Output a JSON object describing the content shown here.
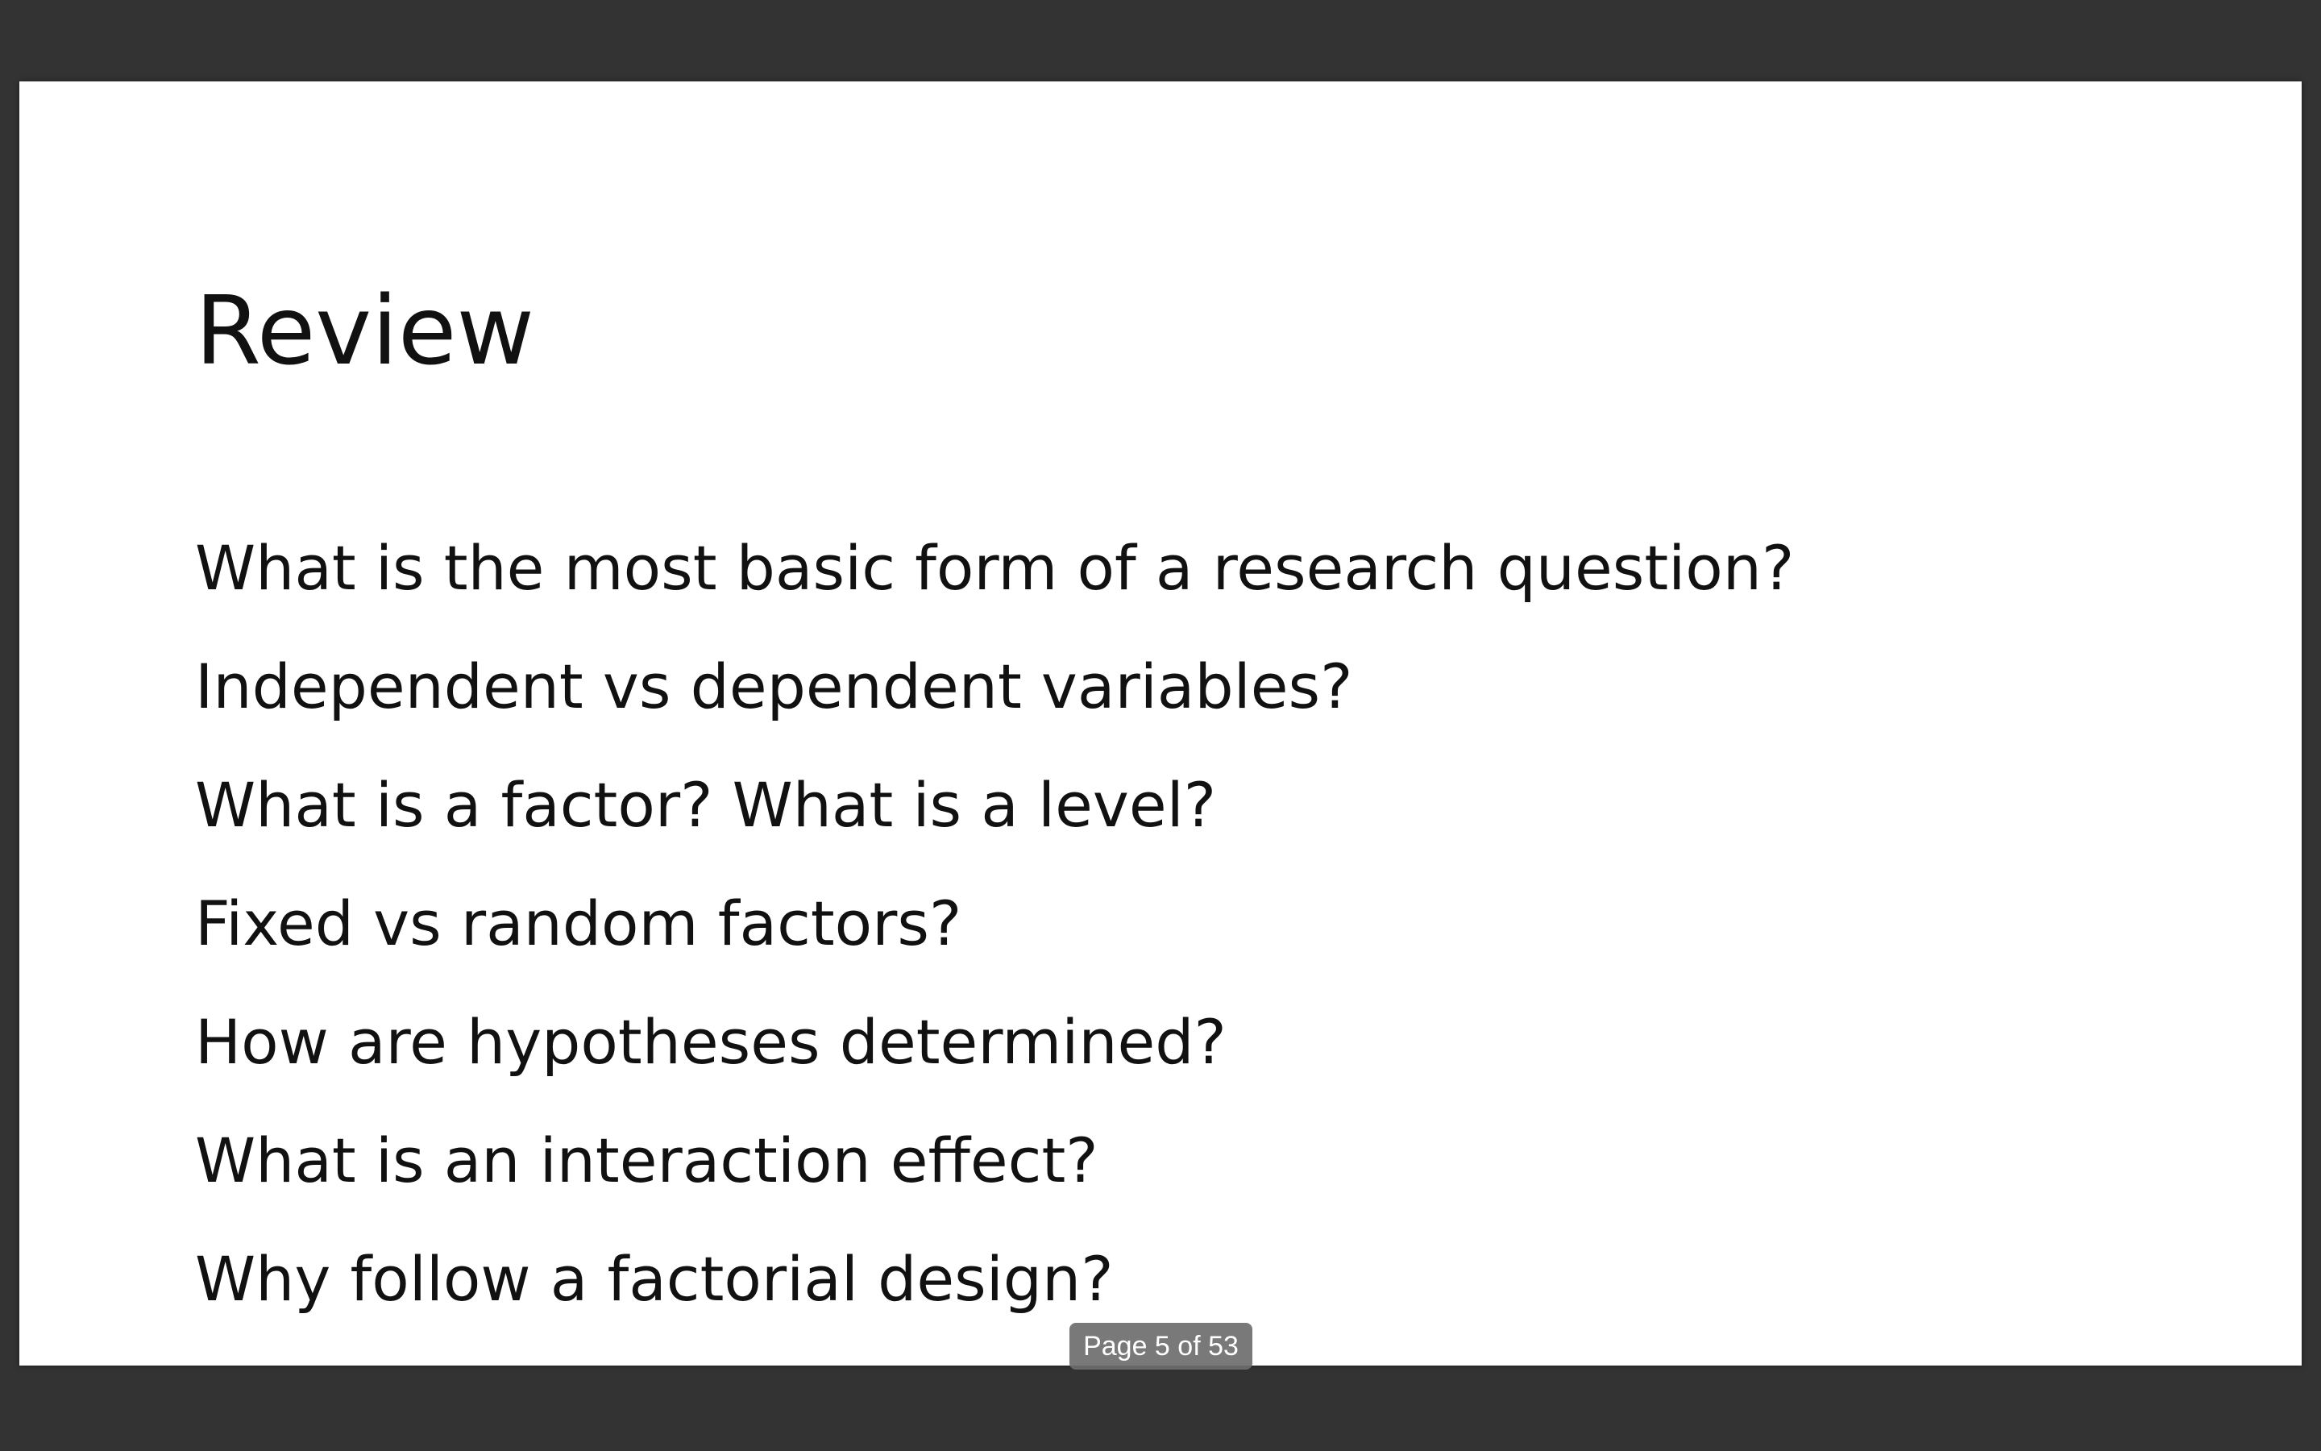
{
  "slide": {
    "title": "Review",
    "bullets": [
      "What is the most basic form of a research question?",
      "Independent vs dependent variables?",
      "What is a factor? What is a level?",
      "Fixed vs random factors?",
      "How are hypotheses determined?",
      "What is an interaction effect?",
      "Why follow a factorial design?"
    ]
  },
  "viewer": {
    "page_indicator": "Page 5 of 53",
    "current_page": 5,
    "total_pages": 53,
    "background_color": "#333333",
    "slide_background": "#ffffff"
  }
}
